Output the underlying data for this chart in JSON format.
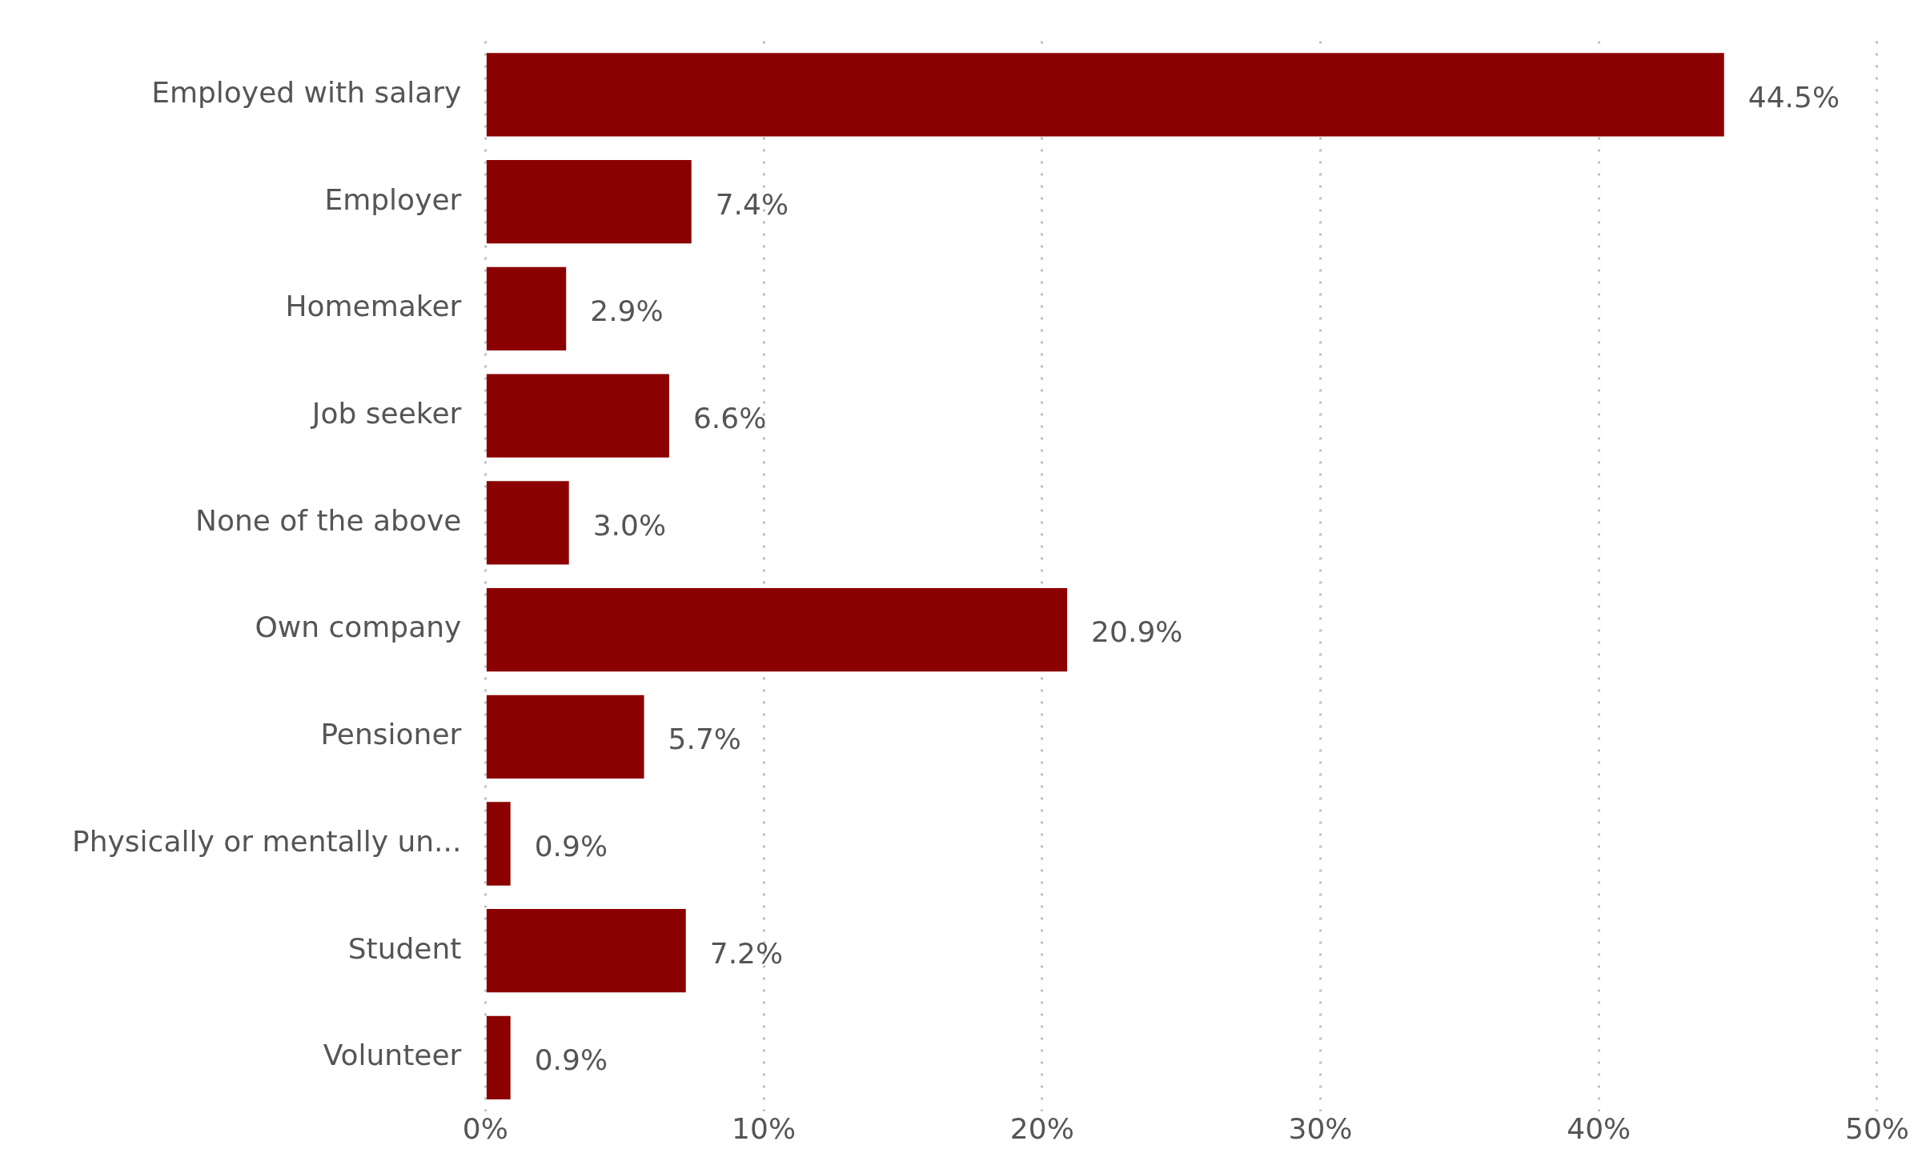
{
  "chart_data": {
    "type": "bar",
    "orientation": "horizontal",
    "categories": [
      "Employed with salary",
      "Employer",
      "Homemaker",
      "Job seeker",
      "None of the above",
      "Own company",
      "Pensioner",
      "Physically or mentally un...",
      "Student",
      "Volunteer"
    ],
    "values": [
      44.5,
      7.4,
      2.9,
      6.6,
      3.0,
      20.9,
      5.7,
      0.9,
      7.2,
      0.9
    ],
    "value_labels": [
      "44.5%",
      "7.4%",
      "2.9%",
      "6.6%",
      "3.0%",
      "20.9%",
      "5.7%",
      "0.9%",
      "7.2%",
      "0.9%"
    ],
    "color": "#8b0000",
    "xlim": [
      0,
      50
    ],
    "xticks": [
      {
        "value": 0,
        "label": "0%"
      },
      {
        "value": 10,
        "label": "10%"
      },
      {
        "value": 20,
        "label": "20%"
      },
      {
        "value": 30,
        "label": "30%"
      },
      {
        "value": 40,
        "label": "40%"
      },
      {
        "value": 50,
        "label": "50%"
      }
    ],
    "grid": "x",
    "legend": false
  }
}
